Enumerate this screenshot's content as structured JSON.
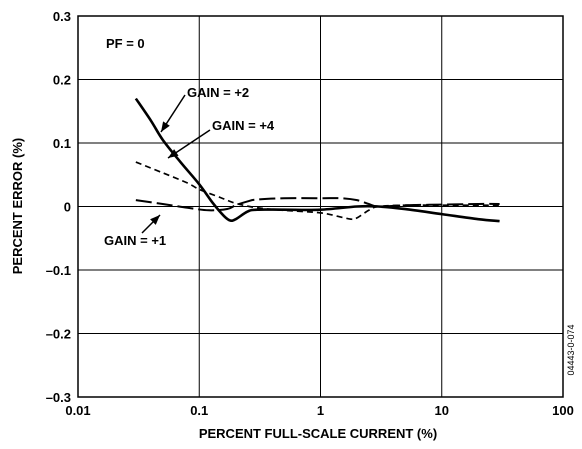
{
  "chart_data": {
    "type": "line",
    "xscale": "log",
    "xlim": [
      0.01,
      100
    ],
    "ylim": [
      -0.3,
      0.3
    ],
    "grid": true,
    "xlabel": "PERCENT FULL-SCALE CURRENT (%)",
    "ylabel": "PERCENT ERROR (%)",
    "x_ticks": [
      "0.01",
      "0.1",
      "1",
      "10",
      "100"
    ],
    "y_ticks": [
      "0.3",
      "0.2",
      "0.1",
      "0",
      "–0.1",
      "–0.2",
      "–0.3"
    ],
    "annotations": {
      "pf": "PF = 0",
      "gain2": "GAIN = +2",
      "gain4": "GAIN = +4",
      "gain1": "GAIN = +1"
    },
    "figure_code": "04443-0-074",
    "series": [
      {
        "name": "GAIN = +2",
        "style": "solid-thick",
        "points": [
          [
            0.03,
            0.17
          ],
          [
            0.04,
            0.135
          ],
          [
            0.05,
            0.105
          ],
          [
            0.07,
            0.07
          ],
          [
            0.1,
            0.035
          ],
          [
            0.13,
            0.005
          ],
          [
            0.16,
            -0.015
          ],
          [
            0.18,
            -0.022
          ],
          [
            0.2,
            -0.02
          ],
          [
            0.25,
            -0.008
          ],
          [
            0.3,
            -0.005
          ],
          [
            0.5,
            -0.005
          ],
          [
            1,
            -0.005
          ],
          [
            2,
            0
          ],
          [
            3,
            0
          ],
          [
            5,
            -0.004
          ],
          [
            10,
            -0.012
          ],
          [
            20,
            -0.02
          ],
          [
            30,
            -0.023
          ]
        ]
      },
      {
        "name": "GAIN = +4",
        "style": "dashed",
        "points": [
          [
            0.03,
            0.07
          ],
          [
            0.05,
            0.053
          ],
          [
            0.08,
            0.037
          ],
          [
            0.1,
            0.027
          ],
          [
            0.15,
            0.014
          ],
          [
            0.2,
            0.005
          ],
          [
            0.3,
            -0.002
          ],
          [
            0.5,
            -0.006
          ],
          [
            1,
            -0.01
          ],
          [
            1.5,
            -0.017
          ],
          [
            1.8,
            -0.02
          ],
          [
            2,
            -0.018
          ],
          [
            2.5,
            -0.006
          ],
          [
            3,
            0
          ],
          [
            5,
            0.002
          ],
          [
            10,
            0.002
          ],
          [
            30,
            0.002
          ]
        ]
      },
      {
        "name": "GAIN = +1",
        "style": "long-dash",
        "points": [
          [
            0.03,
            0.01
          ],
          [
            0.05,
            0.004
          ],
          [
            0.08,
            -0.002
          ],
          [
            0.12,
            -0.006
          ],
          [
            0.17,
            -0.004
          ],
          [
            0.2,
            0.002
          ],
          [
            0.25,
            0.008
          ],
          [
            0.3,
            0.011
          ],
          [
            0.5,
            0.013
          ],
          [
            1,
            0.013
          ],
          [
            1.5,
            0.013
          ],
          [
            2,
            0.01
          ],
          [
            2.5,
            0.004
          ],
          [
            3,
            0
          ],
          [
            5,
            0.002
          ],
          [
            10,
            0.003
          ],
          [
            20,
            0.004
          ],
          [
            30,
            0.004
          ]
        ]
      }
    ]
  }
}
